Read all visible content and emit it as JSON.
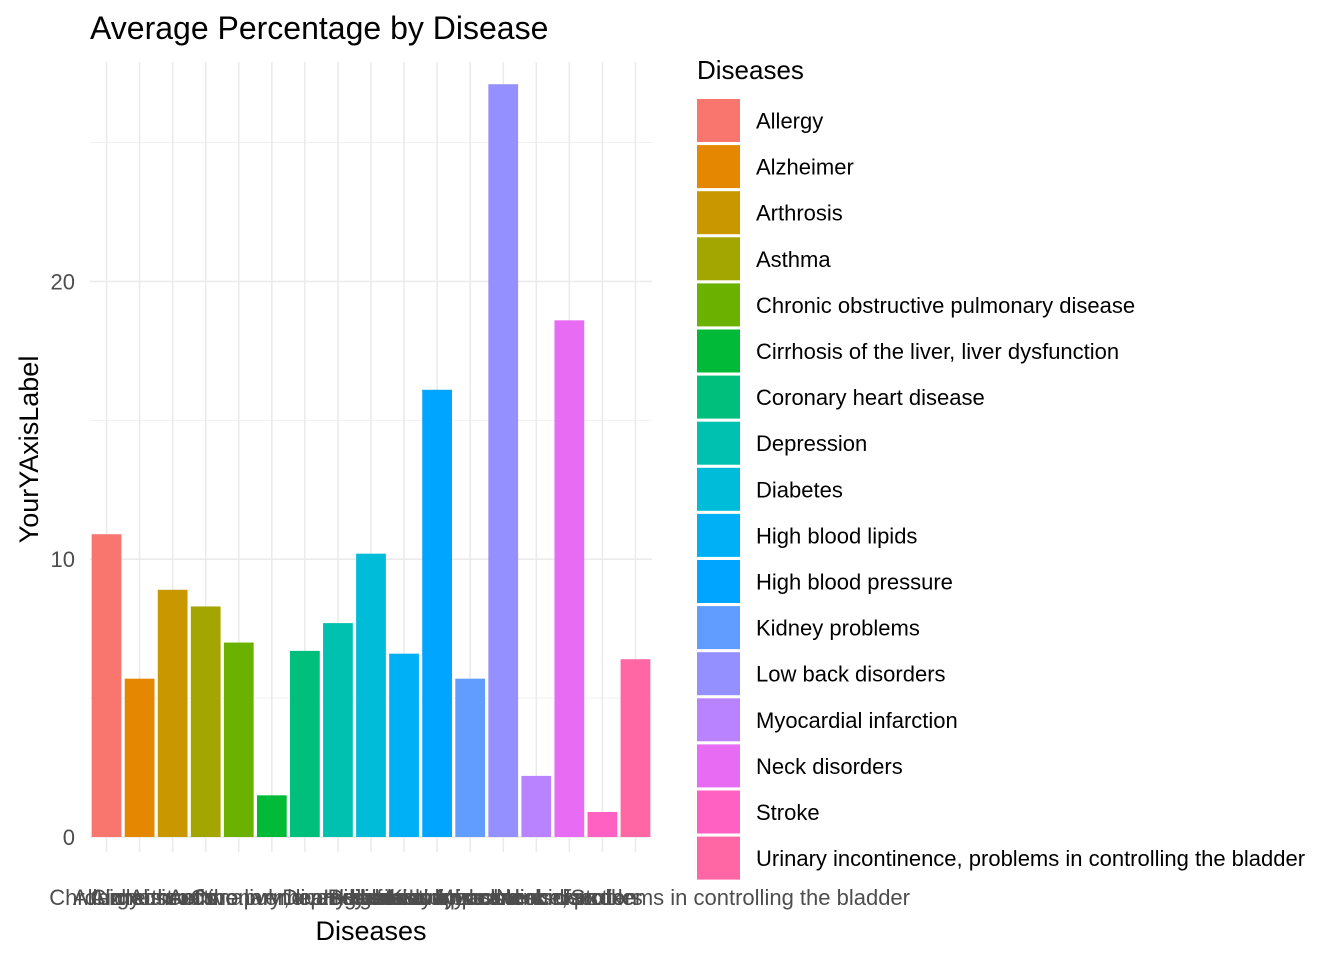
{
  "chart_data": {
    "type": "bar",
    "title": "Average Percentage by Disease",
    "xlabel": "Diseases",
    "ylabel": "YourYAxisLabel",
    "legend_title": "Diseases",
    "legend_position": "right",
    "grid": true,
    "ylim": [
      0,
      27.9
    ],
    "yticks": [
      0,
      10,
      20
    ],
    "categories": [
      "Allergy",
      "Alzheimer",
      "Arthrosis",
      "Asthma",
      "Chronic obstructive pulmonary disease",
      "Cirrhosis of the liver, liver dysfunction",
      "Coronary heart disease",
      "Depression",
      "Diabetes",
      "High blood lipids",
      "High blood pressure",
      "Kidney problems",
      "Low back disorders",
      "Myocardial infarction",
      "Neck disorders",
      "Stroke",
      "Urinary incontinence, problems in controlling the bladder"
    ],
    "values": [
      10.9,
      5.7,
      8.9,
      8.3,
      7.0,
      1.5,
      6.7,
      7.7,
      10.2,
      6.6,
      16.1,
      5.7,
      27.1,
      2.2,
      18.6,
      0.9,
      6.4
    ],
    "colors": [
      "#F8766D",
      "#E58700",
      "#C99800",
      "#A3A500",
      "#6BB100",
      "#00BA38",
      "#00BF7D",
      "#00C0AF",
      "#00BCD8",
      "#00B0F6",
      "#00A5FF",
      "#619CFF",
      "#9590FF",
      "#B983FF",
      "#E76BF3",
      "#FF61C3",
      "#FF67A4"
    ]
  }
}
